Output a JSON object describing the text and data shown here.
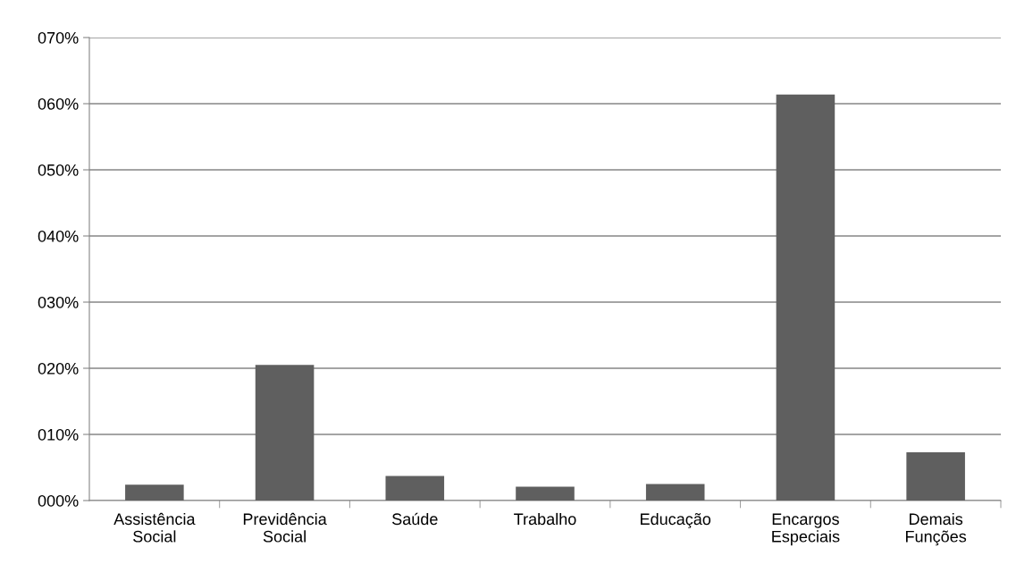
{
  "chart_data": {
    "type": "bar",
    "categories": [
      "Assistência\nSocial",
      "Previdência\nSocial",
      "Saúde",
      "Trabalho",
      "Educação",
      "Encargos\nEspeciais",
      "Demais\nFunções"
    ],
    "values": [
      2.4,
      20.5,
      3.7,
      2.1,
      2.5,
      61.4,
      7.3
    ],
    "color": "#5f5f5f",
    "ylim": [
      0,
      70
    ],
    "yticks": [
      {
        "value": 0,
        "label": "000%"
      },
      {
        "value": 10,
        "label": "010%"
      },
      {
        "value": 20,
        "label": "020%"
      },
      {
        "value": 30,
        "label": "030%"
      },
      {
        "value": 40,
        "label": "040%"
      },
      {
        "value": 50,
        "label": "050%"
      },
      {
        "value": 60,
        "label": "060%"
      },
      {
        "value": 70,
        "label": "070%"
      }
    ],
    "grid": "y",
    "legend": false
  }
}
